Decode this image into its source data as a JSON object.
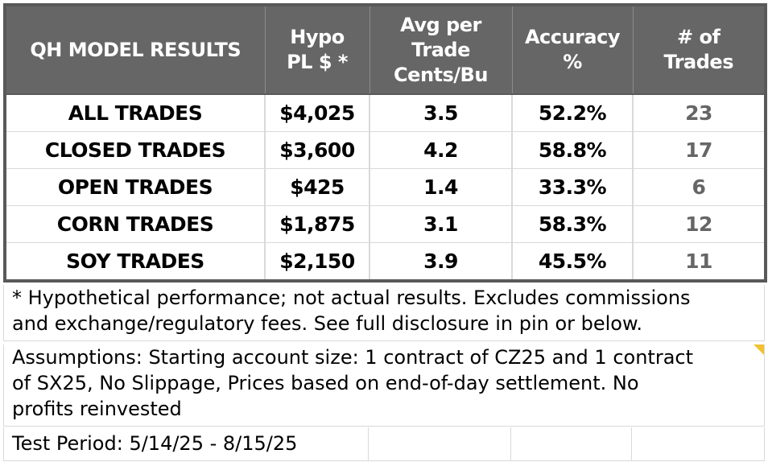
{
  "table": {
    "headers": [
      [
        "QH MODEL RESULTS"
      ],
      [
        "Hypo",
        "PL $ *"
      ],
      [
        "Avg per",
        "Trade",
        "Cents/Bu"
      ],
      [
        "Accuracy",
        "%"
      ],
      [
        "# of",
        "Trades"
      ]
    ],
    "rows": [
      {
        "label": "ALL TRADES",
        "pl": "$4,025",
        "avg": "3.5",
        "accuracy": "52.2%",
        "trades": "23"
      },
      {
        "label": "CLOSED TRADES",
        "pl": "$3,600",
        "avg": "4.2",
        "accuracy": "58.8%",
        "trades": "17"
      },
      {
        "label": "OPEN TRADES",
        "pl": "$425",
        "avg": "1.4",
        "accuracy": "33.3%",
        "trades": "6"
      },
      {
        "label": "CORN TRADES",
        "pl": "$1,875",
        "avg": "3.1",
        "accuracy": "58.3%",
        "trades": "12"
      },
      {
        "label": "SOY TRADES",
        "pl": "$2,150",
        "avg": "3.9",
        "accuracy": "45.5%",
        "trades": "11"
      }
    ]
  },
  "notes": {
    "disclaimer": [
      "* Hypothetical performance; not actual results. Excludes commissions",
      "and exchange/regulatory fees. See full disclosure in pin or below."
    ],
    "assumptions": [
      "Assumptions: Starting account size: 1 contract of CZ25 and 1 contract",
      "of SX25, No Slippage, Prices based on end-of-day settlement. No",
      "profits reinvested"
    ],
    "test_period": "Test Period: 5/14/25 - 8/15/25"
  },
  "colors": {
    "header_bg": "#666666",
    "border": "#595959",
    "grid": "#d9d9d9",
    "trades_text": "#666666",
    "comment_marker": "#f1c232"
  }
}
